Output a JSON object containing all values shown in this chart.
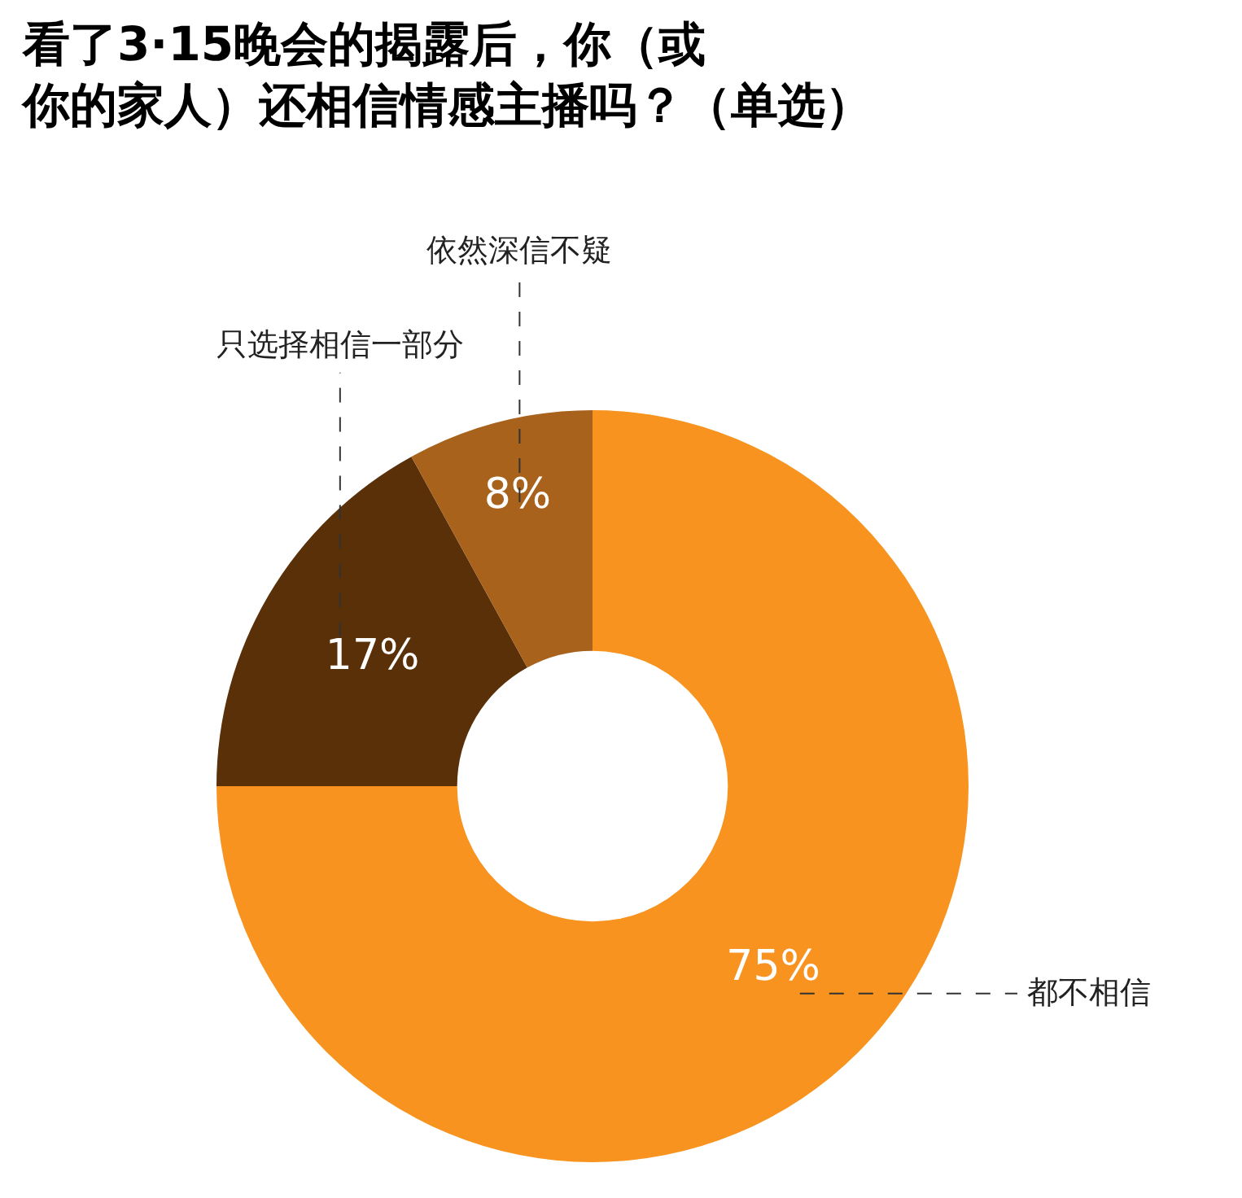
{
  "chart_data": {
    "type": "donut",
    "title": "看了3·15晚会的揭露后，你（或你的家人）还相信情感主播吗？（单选）",
    "categories": [
      "都不相信",
      "只选择相信一部分",
      "依然深信不疑"
    ],
    "values": [
      75,
      17,
      8
    ],
    "value_labels": [
      "75%",
      "17%",
      "8%"
    ],
    "colors": [
      "#f7931e",
      "#5a3008",
      "#a8621c"
    ],
    "legend": false
  }
}
